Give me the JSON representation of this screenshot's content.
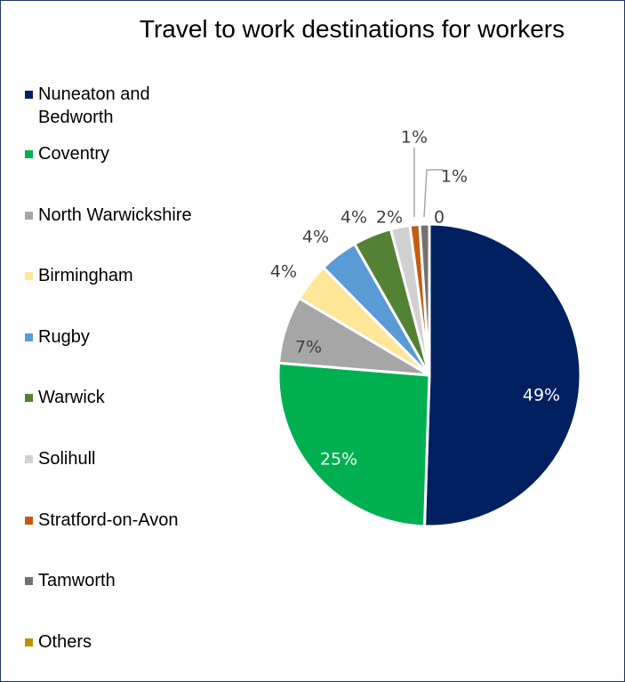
{
  "chart_data": {
    "type": "pie",
    "title": "Travel to work destinations for workers",
    "legend_position": "left",
    "slices": [
      {
        "name": "Nuneaton and Bedworth",
        "value": 49,
        "label": "49%",
        "color": "#002060",
        "label_color": "#ffffff"
      },
      {
        "name": "Coventry",
        "value": 25,
        "label": "25%",
        "color": "#00b050",
        "label_color": "#ffffff"
      },
      {
        "name": "North Warwickshire",
        "value": 7,
        "label": "7%",
        "color": "#a6a6a6",
        "label_color": "#404040"
      },
      {
        "name": "Birmingham",
        "value": 4,
        "label": "4%",
        "color": "#ffe699",
        "label_color": "#404040"
      },
      {
        "name": "Rugby",
        "value": 4,
        "label": "4%",
        "color": "#5b9bd5",
        "label_color": "#404040"
      },
      {
        "name": "Warwick",
        "value": 4,
        "label": "4%",
        "color": "#548235",
        "label_color": "#404040"
      },
      {
        "name": "Solihull",
        "value": 2,
        "label": "2%",
        "color": "#d0d0d0",
        "label_color": "#404040"
      },
      {
        "name": "Stratford-on-Avon",
        "value": 1,
        "label": "1%",
        "color": "#c55a11",
        "label_color": "#404040"
      },
      {
        "name": "Tamworth",
        "value": 1,
        "label": "1%",
        "color": "#767171",
        "label_color": "#404040"
      },
      {
        "name": "Others",
        "value": 0,
        "label": "0",
        "color": "#bf9000",
        "label_color": "#404040"
      }
    ]
  }
}
